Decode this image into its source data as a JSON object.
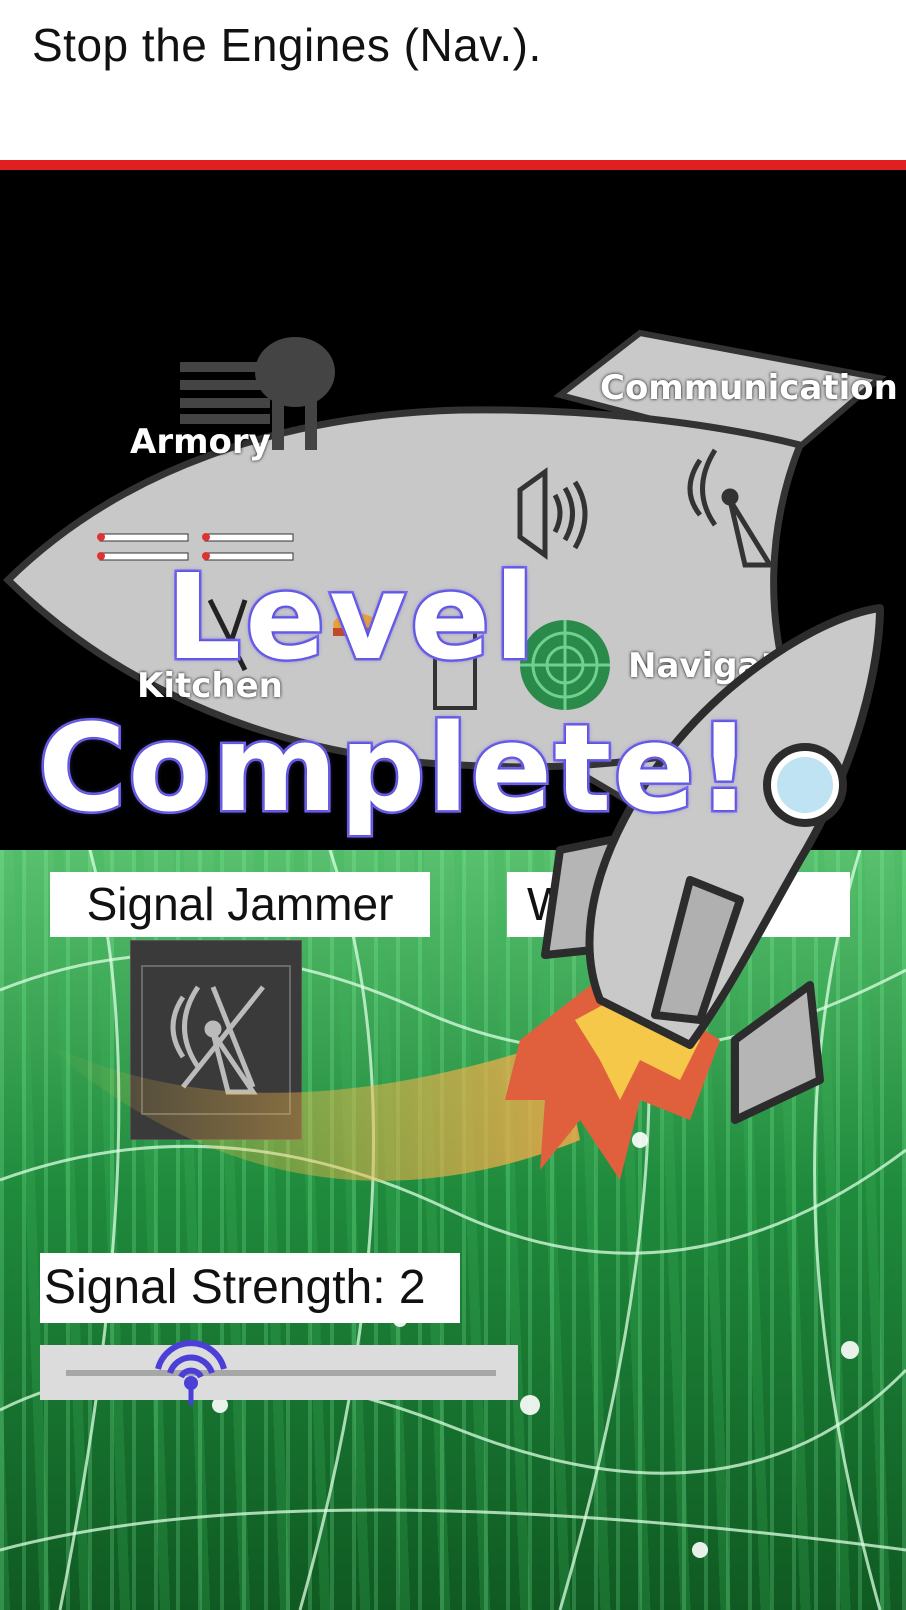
{
  "header": {
    "title": "Stop the Engines (Nav.)."
  },
  "ship": {
    "rooms": {
      "armory": "Armory",
      "communication": "Communication",
      "kitchen": "Kitchen",
      "navigation": "Navigati"
    }
  },
  "overlay": {
    "line1": "Level",
    "line2": "Complete!"
  },
  "controls": {
    "jammer_label": "Signal Jammer",
    "second_label": "Wi",
    "strength_label": "Signal Strength: 2",
    "strength_value": 2
  },
  "colors": {
    "accent_red": "#e02020",
    "overlay_stroke": "#7a6cf0",
    "slider_thumb": "#4b3fd8"
  }
}
